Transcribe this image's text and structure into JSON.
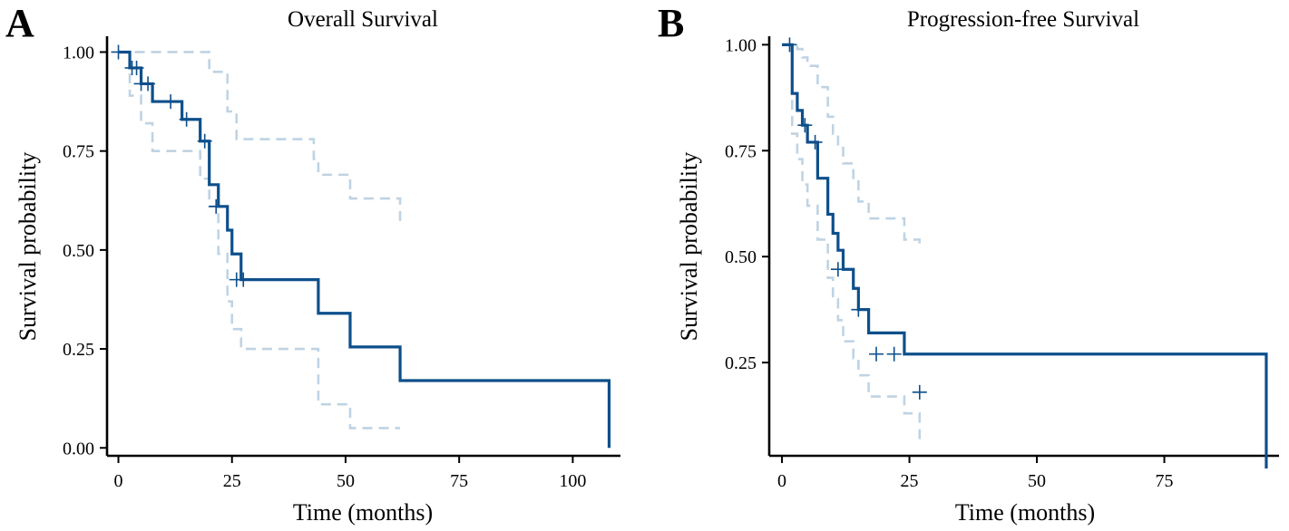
{
  "chart_data": [
    {
      "type": "line",
      "panel_label": "A",
      "title": "Overall Survival",
      "xlabel": "Time (months)",
      "ylabel": "Survival probability",
      "xlim": [
        -2.5,
        110.5
      ],
      "ylim": [
        -0.02,
        1.04
      ],
      "xticks": [
        0,
        25,
        50,
        75,
        100
      ],
      "xtick_labels": [
        "0",
        "25",
        "50",
        "75",
        "100"
      ],
      "yticks": [
        0.0,
        0.25,
        0.5,
        0.75,
        1.0
      ],
      "ytick_labels": [
        "0.00",
        "0.25",
        "0.50",
        "0.75",
        "1.00"
      ],
      "colors": {
        "survival": "#0d4f8b",
        "ci": "#bfd3e3"
      },
      "series": [
        {
          "name": "survival",
          "style": "solid",
          "step_x": [
            0,
            2.5,
            5,
            7.5,
            14,
            18,
            20,
            22,
            24,
            25,
            27,
            43,
            44,
            51,
            62,
            108
          ],
          "step_y": [
            1.0,
            0.96,
            0.92,
            0.875,
            0.83,
            0.775,
            0.665,
            0.61,
            0.55,
            0.49,
            0.425,
            0.425,
            0.34,
            0.255,
            0.17,
            0.085
          ],
          "end_x": 108,
          "end_y": 0.0
        },
        {
          "name": "upper CI",
          "style": "dashed",
          "step_x": [
            0,
            5,
            20,
            24,
            26,
            43,
            44,
            51,
            62
          ],
          "step_y": [
            1.0,
            1.0,
            0.95,
            0.85,
            0.78,
            0.73,
            0.69,
            0.63,
            0.57
          ],
          "end_x": 62,
          "end_y": 0.57
        },
        {
          "name": "lower CI",
          "style": "dashed",
          "step_x": [
            0,
            2.5,
            5,
            7.5,
            14,
            18,
            20,
            22,
            24,
            25,
            27,
            43,
            44,
            51,
            62
          ],
          "step_y": [
            1.0,
            0.89,
            0.82,
            0.75,
            0.75,
            0.68,
            0.61,
            0.49,
            0.37,
            0.3,
            0.25,
            0.25,
            0.11,
            0.05,
            0.05
          ],
          "end_x": 62,
          "end_y": 0.05
        }
      ],
      "censor_points": [
        {
          "x": 0,
          "y": 1.0
        },
        {
          "x": 3,
          "y": 0.96
        },
        {
          "x": 4,
          "y": 0.96
        },
        {
          "x": 5,
          "y": 0.92
        },
        {
          "x": 6.5,
          "y": 0.92
        },
        {
          "x": 11.5,
          "y": 0.875
        },
        {
          "x": 15,
          "y": 0.83
        },
        {
          "x": 19,
          "y": 0.775
        },
        {
          "x": 21.5,
          "y": 0.61
        },
        {
          "x": 26,
          "y": 0.425
        },
        {
          "x": 27.5,
          "y": 0.425
        }
      ]
    },
    {
      "type": "line",
      "panel_label": "B",
      "title": "Progression-free Survival",
      "xlabel": "Time (months)",
      "ylabel": "Survival probability",
      "xlim": [
        -2.5,
        97.5
      ],
      "ylim": [
        0.03,
        1.02
      ],
      "xticks": [
        0,
        25,
        50,
        75
      ],
      "xtick_labels": [
        "0",
        "25",
        "50",
        "75"
      ],
      "yticks": [
        0.25,
        0.5,
        0.75,
        1.0
      ],
      "ytick_labels": [
        "0.25",
        "0.50",
        "0.75",
        "1.00"
      ],
      "colors": {
        "survival": "#0d4f8b",
        "ci": "#bfd3e3"
      },
      "series": [
        {
          "name": "survival",
          "style": "solid",
          "step_x": [
            0,
            2,
            3,
            4,
            5,
            7,
            9,
            10,
            11,
            12,
            14,
            15,
            17,
            24,
            95
          ],
          "step_y": [
            1.0,
            0.885,
            0.845,
            0.81,
            0.77,
            0.685,
            0.6,
            0.555,
            0.515,
            0.47,
            0.425,
            0.375,
            0.32,
            0.27,
            0.18
          ],
          "end_x": 95,
          "end_y": 0.0
        },
        {
          "name": "upper CI",
          "style": "dashed",
          "step_x": [
            0,
            2,
            3,
            4,
            5,
            7,
            9,
            10,
            11,
            12,
            14,
            15,
            17,
            24,
            27
          ],
          "step_y": [
            1.0,
            1.0,
            0.99,
            0.97,
            0.95,
            0.9,
            0.83,
            0.79,
            0.76,
            0.72,
            0.68,
            0.63,
            0.59,
            0.54,
            0.52
          ],
          "end_x": 27,
          "end_y": 0.52
        },
        {
          "name": "lower CI",
          "style": "dashed",
          "step_x": [
            0,
            2,
            3,
            4,
            5,
            7,
            9,
            10,
            11,
            12,
            14,
            15,
            17,
            24,
            27
          ],
          "step_y": [
            1.0,
            0.79,
            0.73,
            0.67,
            0.62,
            0.54,
            0.45,
            0.4,
            0.35,
            0.3,
            0.26,
            0.22,
            0.17,
            0.13,
            0.06
          ],
          "end_x": 27,
          "end_y": 0.06
        }
      ],
      "censor_points": [
        {
          "x": 1.5,
          "y": 1.0
        },
        {
          "x": 4.5,
          "y": 0.81
        },
        {
          "x": 6.5,
          "y": 0.77
        },
        {
          "x": 11,
          "y": 0.47
        },
        {
          "x": 15,
          "y": 0.375
        },
        {
          "x": 18.5,
          "y": 0.27
        },
        {
          "x": 22,
          "y": 0.27
        },
        {
          "x": 27,
          "y": 0.18
        }
      ]
    }
  ]
}
